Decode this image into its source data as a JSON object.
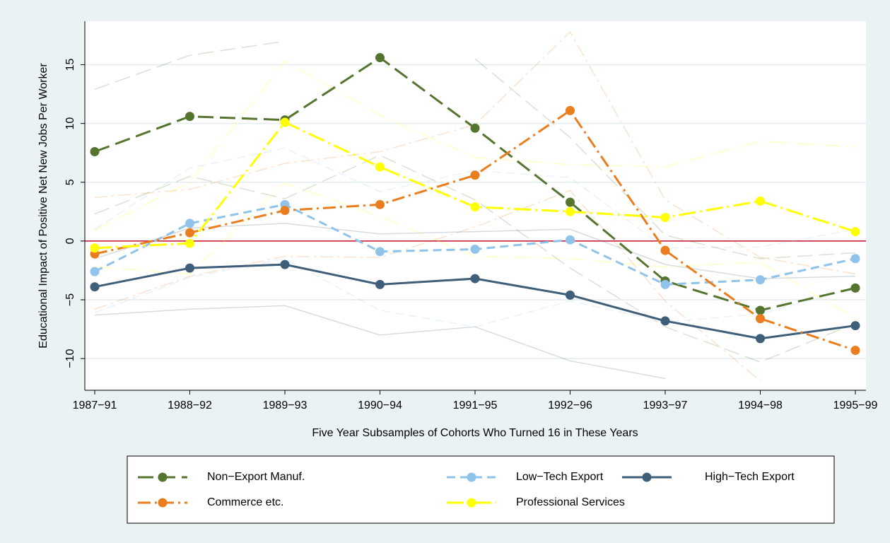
{
  "chart_data": {
    "type": "line",
    "x_label": "Five Year Subsamples of Cohorts Who Turned 16 in These Years",
    "y_label": "Educational Impact of Positive Net New Jobs Per Worker",
    "categories": [
      "1987−91",
      "1988−92",
      "1989−93",
      "1990−94",
      "1991−95",
      "1992−96",
      "1993−97",
      "1994−98",
      "1995−99"
    ],
    "ylim": [
      -12.7,
      18.7
    ],
    "yticks": [
      {
        "value": -10,
        "label": "−10"
      },
      {
        "value": -5,
        "label": "−5"
      },
      0,
      5,
      10,
      15
    ],
    "grid": true,
    "reference_line": {
      "value": 0,
      "color": "#c8102e"
    },
    "series": [
      {
        "name": "Non−Export Manuf.",
        "color": "#55752f",
        "dash": "22 9",
        "values": [
          7.6,
          10.6,
          10.3,
          15.6,
          9.6,
          3.3,
          -3.4,
          -5.9,
          -4.0
        ],
        "ci_upper": [
          12.9,
          15.8,
          17.0,
          null,
          15.5,
          8.8,
          0.5,
          -1.5,
          -1.0
        ],
        "ci_lower": [
          2.3,
          5.5,
          3.6,
          7.3,
          3.5,
          -2.3,
          -7.3,
          -10.3,
          -7.0
        ]
      },
      {
        "name": "Low−Tech Export",
        "color": "#90c3ea",
        "dash": "12 7",
        "values": [
          -2.6,
          1.5,
          3.1,
          -0.9,
          -0.7,
          0.1,
          -3.7,
          -3.3,
          -1.5
        ],
        "ci_upper": [
          1.0,
          6.2,
          7.9,
          4.2,
          6.0,
          5.4,
          -0.6,
          -0.5,
          1.0
        ],
        "ci_lower": [
          -6.1,
          -3.1,
          -1.5,
          -5.9,
          -7.3,
          -5.1,
          -6.9,
          -6.2,
          -4.0
        ]
      },
      {
        "name": "High−Tech Export",
        "color": "#3e5e7a",
        "dash": "none",
        "values": [
          -3.9,
          -2.3,
          -2.0,
          -3.7,
          -3.2,
          -4.6,
          -6.8,
          -8.3,
          -7.2
        ],
        "ci_upper": [
          -1.5,
          1.1,
          1.5,
          0.6,
          0.8,
          1.0,
          -2.0,
          -3.2,
          -3.0
        ],
        "ci_lower": [
          -6.3,
          -5.8,
          -5.5,
          -8.0,
          -7.3,
          -10.2,
          -11.7,
          null,
          null
        ]
      },
      {
        "name": "Commerce etc.",
        "color": "#ea7d1e",
        "dash": "18 6 3 6",
        "values": [
          -1.1,
          0.7,
          2.6,
          3.1,
          5.6,
          11.1,
          -0.8,
          -6.6,
          -9.3
        ],
        "ci_upper": [
          3.7,
          4.4,
          6.6,
          7.6,
          9.9,
          17.8,
          3.5,
          -1.4,
          -2.8
        ],
        "ci_lower": [
          -5.8,
          -3.0,
          -1.3,
          -1.4,
          1.2,
          4.3,
          -5.1,
          -11.9,
          null
        ]
      },
      {
        "name": "Professional Services",
        "color": "#ffff00",
        "dash": "24 6 3 6",
        "values": [
          -0.6,
          -0.2,
          10.1,
          6.3,
          2.9,
          2.5,
          2.0,
          3.4,
          0.8
        ],
        "ci_upper": [
          0.9,
          5.0,
          15.3,
          10.7,
          7.1,
          6.5,
          6.3,
          8.5,
          8.0
        ],
        "ci_lower": [
          -2.2,
          -2.8,
          4.9,
          2.1,
          -1.3,
          -1.5,
          -2.2,
          -1.8,
          -6.6
        ]
      }
    ]
  }
}
